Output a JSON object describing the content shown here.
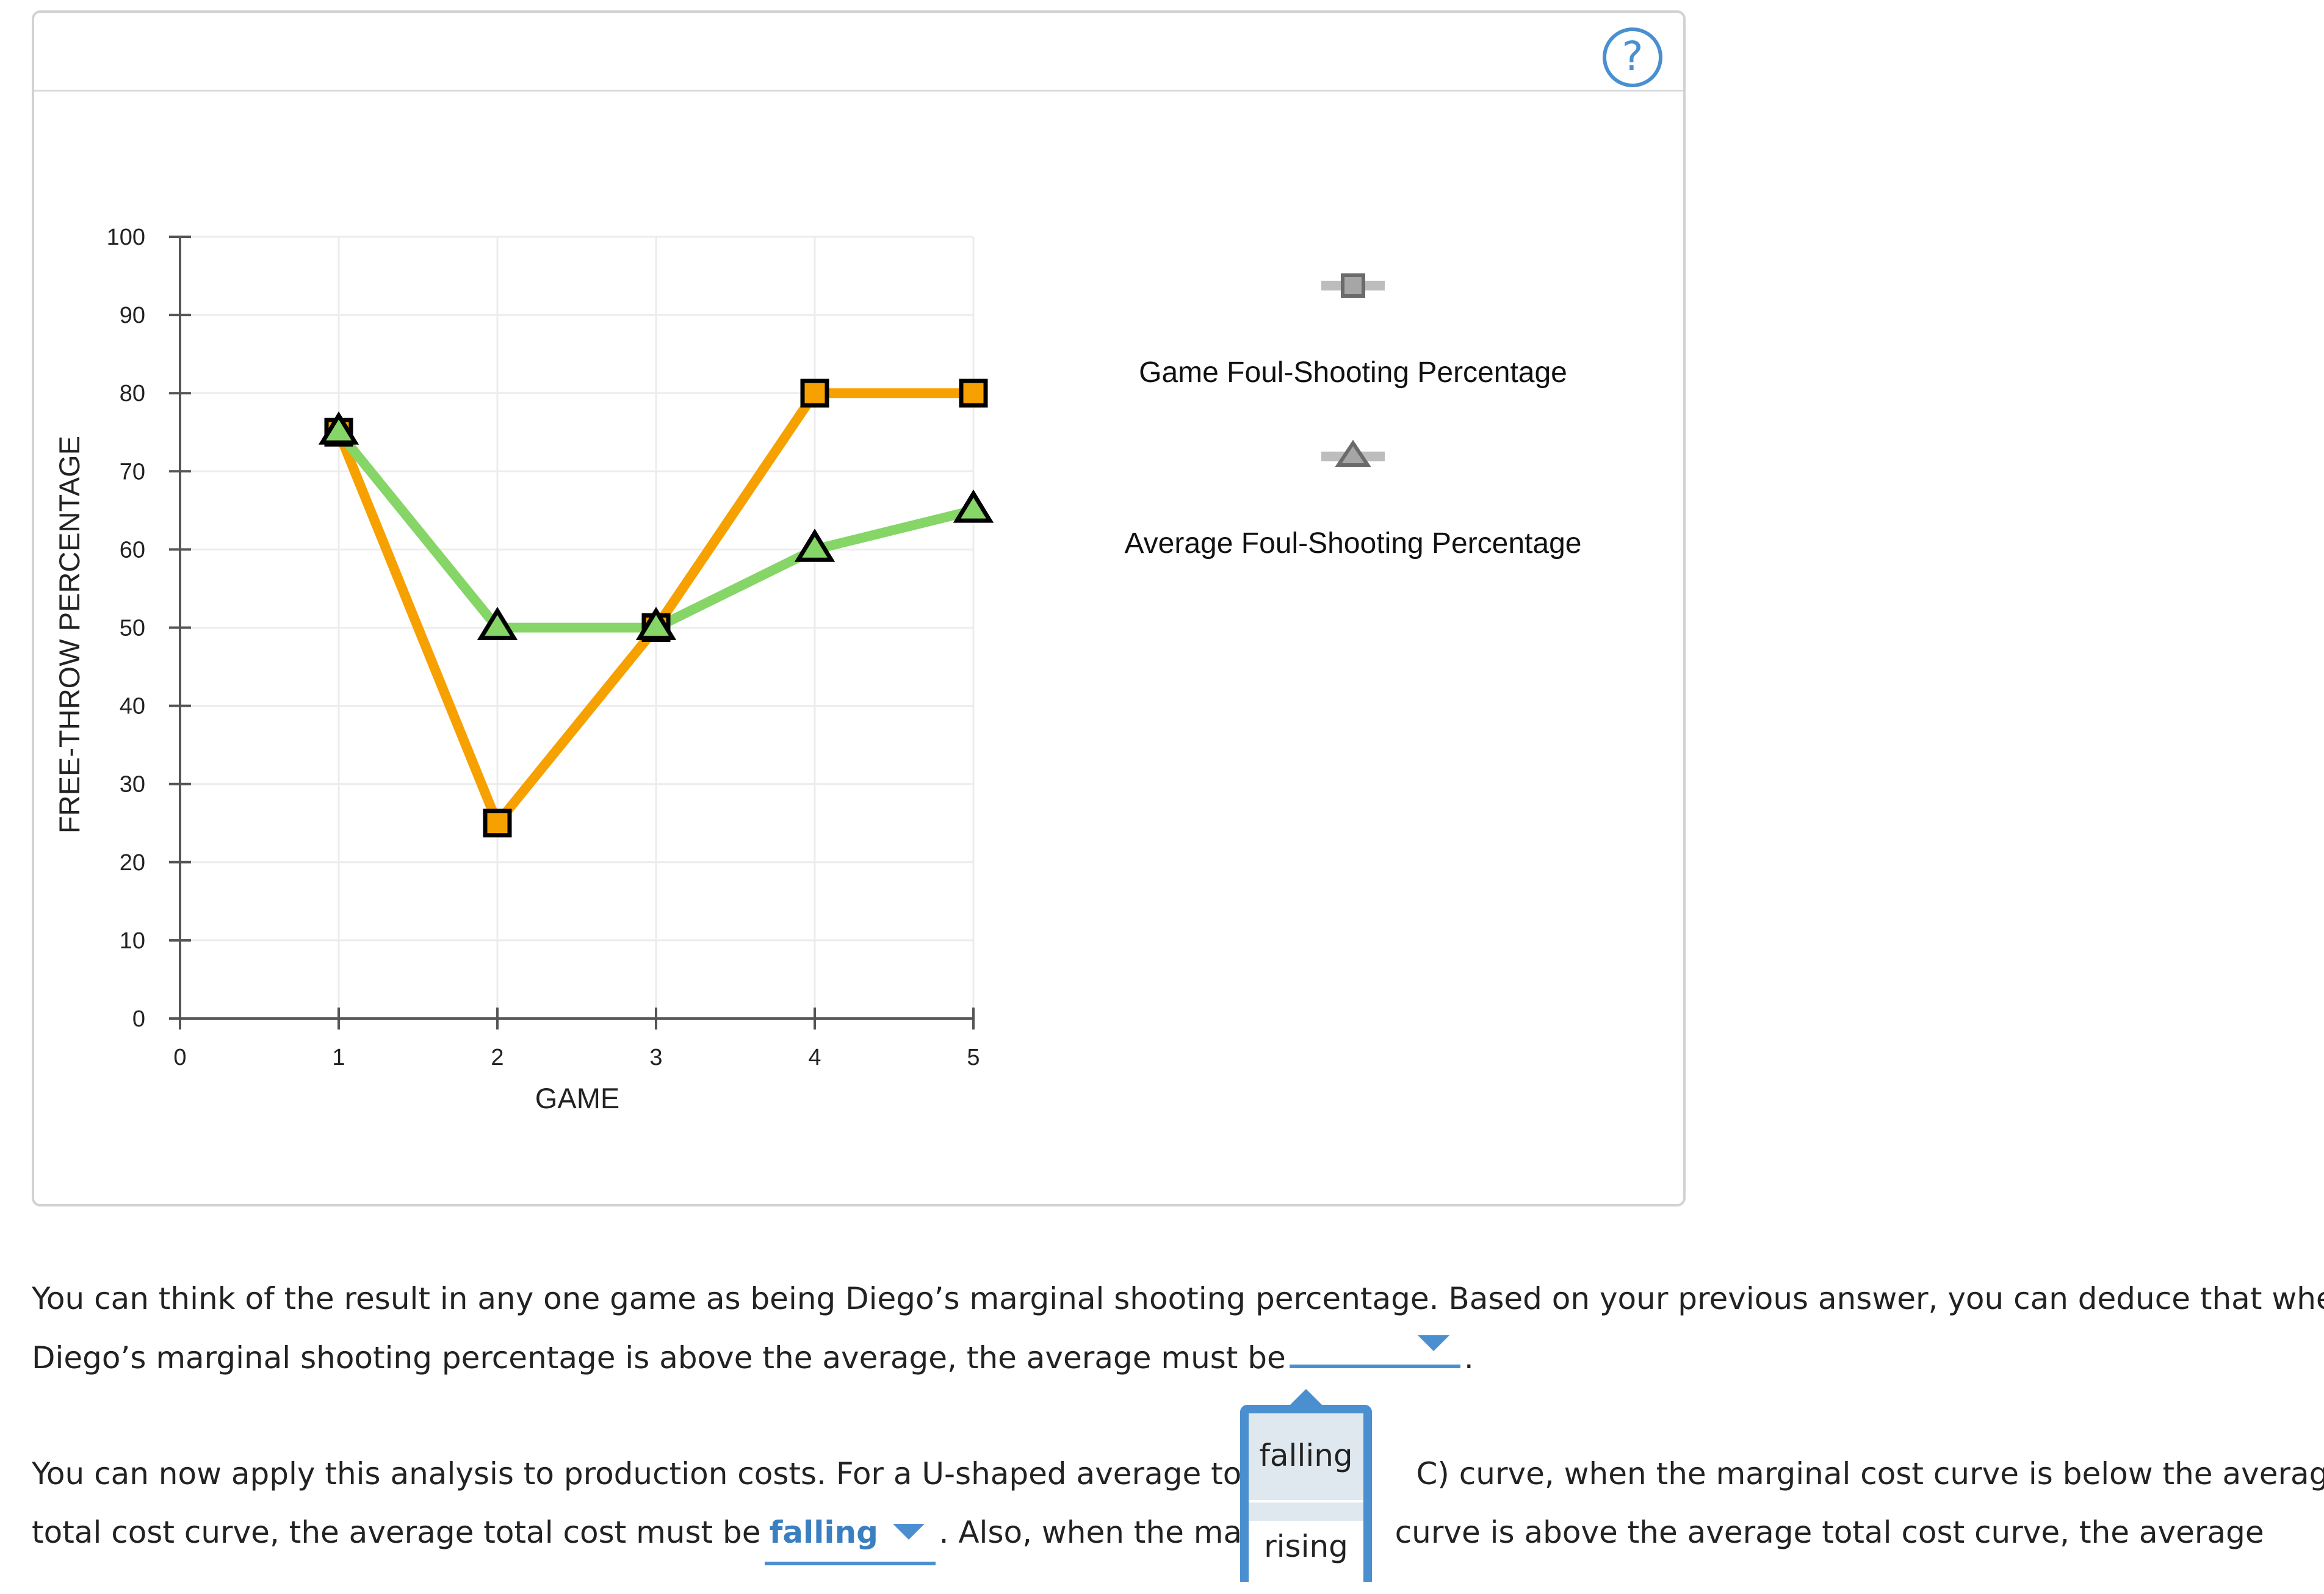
{
  "help": {
    "label": "?"
  },
  "chart_data": {
    "type": "line",
    "x": [
      1,
      2,
      3,
      4,
      5
    ],
    "series": [
      {
        "name": "Game Foul-Shooting Percentage",
        "marker": "square",
        "color": "#f7a100",
        "values": [
          75,
          25,
          50,
          80,
          80
        ]
      },
      {
        "name": "Average Foul-Shooting Percentage",
        "marker": "triangle",
        "color": "#85d567",
        "values": [
          75,
          50,
          50,
          60,
          65
        ]
      }
    ],
    "xlabel": "GAME",
    "ylabel": "FREE-THROW PERCENTAGE",
    "xlim": [
      0,
      5
    ],
    "ylim": [
      0,
      100
    ],
    "xticks": [
      0,
      1,
      2,
      3,
      4,
      5
    ],
    "yticks": [
      0,
      10,
      20,
      30,
      40,
      50,
      60,
      70,
      80,
      90,
      100
    ],
    "grid": true,
    "legend_position": "right"
  },
  "text": {
    "p1_line1": "You can think of the result in any one game as being Diego’s marginal shooting percentage. Based on your previous answer, you can deduce that when",
    "p1_line2": "Diego’s marginal shooting percentage is above the average, the average must be",
    "p1_end": ".",
    "p2_line1a": "You can now apply this analysis to production costs. For a U-shaped average total",
    "p2_line1b": "C) curve, when the marginal cost curve is below the average",
    "p2_line2a": "total cost curve, the average total cost must be",
    "p2_line2b": ". Also, when the mar",
    "p2_line2c": "curve is above the average total cost curve, the average"
  },
  "selects": {
    "select1_value": "",
    "select2_value": "falling"
  },
  "dropdown": {
    "options": [
      "falling",
      "rising"
    ]
  },
  "colors": {
    "accent": "#4a8fcf",
    "orange": "#f7a100",
    "green": "#85d567"
  }
}
